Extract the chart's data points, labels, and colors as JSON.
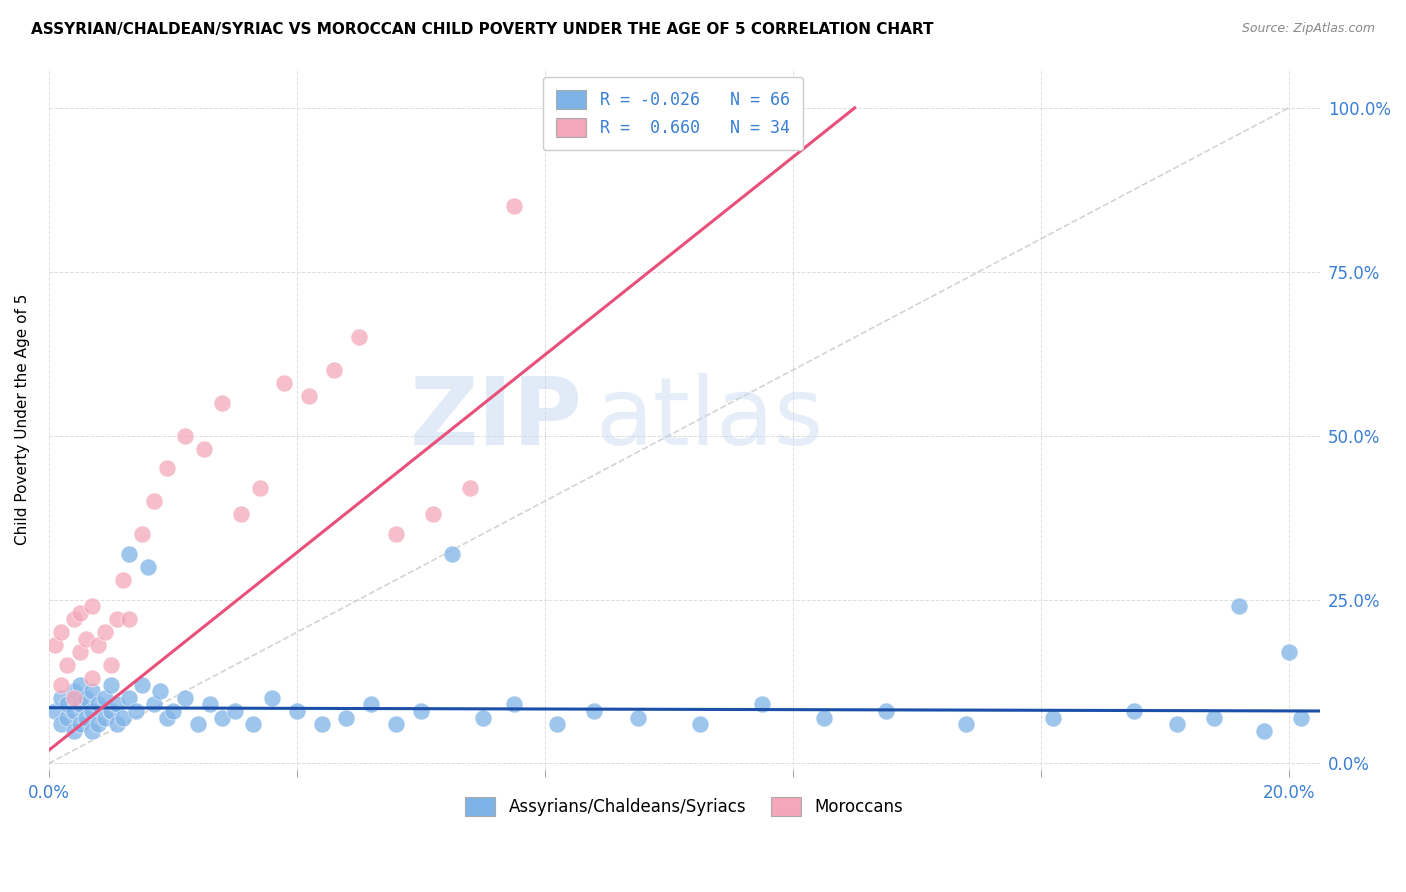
{
  "title": "ASSYRIAN/CHALDEAN/SYRIAC VS MOROCCAN CHILD POVERTY UNDER THE AGE OF 5 CORRELATION CHART",
  "source": "Source: ZipAtlas.com",
  "ylabel": "Child Poverty Under the Age of 5",
  "xlim": [
    0.0,
    0.205
  ],
  "ylim": [
    -0.01,
    1.06
  ],
  "yticks": [
    0.0,
    0.25,
    0.5,
    0.75,
    1.0
  ],
  "ytick_labels_right": [
    "0.0%",
    "25.0%",
    "50.0%",
    "75.0%",
    "100.0%"
  ],
  "xticks": [
    0.0,
    0.04,
    0.08,
    0.12,
    0.16,
    0.2
  ],
  "xtick_labels": [
    "0.0%",
    "",
    "",
    "",
    "",
    "20.0%"
  ],
  "blue_color": "#7EB3E8",
  "pink_color": "#F4A7B9",
  "blue_line_color": "#1B4FA8",
  "pink_line_color": "#E8507A",
  "gray_dash_color": "#C8C8C8",
  "axis_color": "#3B7FD4",
  "legend_label_blue": "Assyrians/Chaldeans/Syriacs",
  "legend_label_pink": "Moroccans",
  "watermark_zip": "ZIP",
  "watermark_atlas": "atlas",
  "blue_scatter_x": [
    0.001,
    0.002,
    0.002,
    0.003,
    0.003,
    0.004,
    0.004,
    0.004,
    0.005,
    0.005,
    0.005,
    0.006,
    0.006,
    0.007,
    0.007,
    0.007,
    0.008,
    0.008,
    0.009,
    0.009,
    0.01,
    0.01,
    0.011,
    0.011,
    0.012,
    0.013,
    0.013,
    0.014,
    0.015,
    0.016,
    0.017,
    0.018,
    0.019,
    0.02,
    0.022,
    0.024,
    0.026,
    0.028,
    0.03,
    0.033,
    0.036,
    0.04,
    0.044,
    0.048,
    0.052,
    0.056,
    0.06,
    0.065,
    0.07,
    0.075,
    0.082,
    0.088,
    0.095,
    0.105,
    0.115,
    0.125,
    0.135,
    0.148,
    0.162,
    0.175,
    0.182,
    0.188,
    0.192,
    0.196,
    0.2,
    0.202
  ],
  "blue_scatter_y": [
    0.08,
    0.06,
    0.1,
    0.07,
    0.09,
    0.05,
    0.08,
    0.11,
    0.06,
    0.09,
    0.12,
    0.07,
    0.1,
    0.05,
    0.08,
    0.11,
    0.06,
    0.09,
    0.07,
    0.1,
    0.08,
    0.12,
    0.06,
    0.09,
    0.07,
    0.1,
    0.32,
    0.08,
    0.12,
    0.3,
    0.09,
    0.11,
    0.07,
    0.08,
    0.1,
    0.06,
    0.09,
    0.07,
    0.08,
    0.06,
    0.1,
    0.08,
    0.06,
    0.07,
    0.09,
    0.06,
    0.08,
    0.32,
    0.07,
    0.09,
    0.06,
    0.08,
    0.07,
    0.06,
    0.09,
    0.07,
    0.08,
    0.06,
    0.07,
    0.08,
    0.06,
    0.07,
    0.24,
    0.05,
    0.17,
    0.07
  ],
  "pink_scatter_x": [
    0.001,
    0.002,
    0.002,
    0.003,
    0.004,
    0.004,
    0.005,
    0.005,
    0.006,
    0.007,
    0.007,
    0.008,
    0.009,
    0.01,
    0.011,
    0.012,
    0.013,
    0.015,
    0.017,
    0.019,
    0.022,
    0.025,
    0.028,
    0.031,
    0.034,
    0.038,
    0.042,
    0.046,
    0.05,
    0.056,
    0.062,
    0.068,
    0.075,
    0.082
  ],
  "pink_scatter_y": [
    0.18,
    0.12,
    0.2,
    0.15,
    0.1,
    0.22,
    0.17,
    0.23,
    0.19,
    0.13,
    0.24,
    0.18,
    0.2,
    0.15,
    0.22,
    0.28,
    0.22,
    0.35,
    0.4,
    0.45,
    0.5,
    0.48,
    0.55,
    0.38,
    0.42,
    0.58,
    0.56,
    0.6,
    0.65,
    0.35,
    0.38,
    0.42,
    0.85,
    1.0
  ],
  "pink_line_x0": 0.0,
  "pink_line_y0": 0.02,
  "pink_line_x1": 0.13,
  "pink_line_y1": 1.0,
  "blue_line_x0": 0.0,
  "blue_line_y0": 0.085,
  "blue_line_x1": 0.205,
  "blue_line_y1": 0.08
}
